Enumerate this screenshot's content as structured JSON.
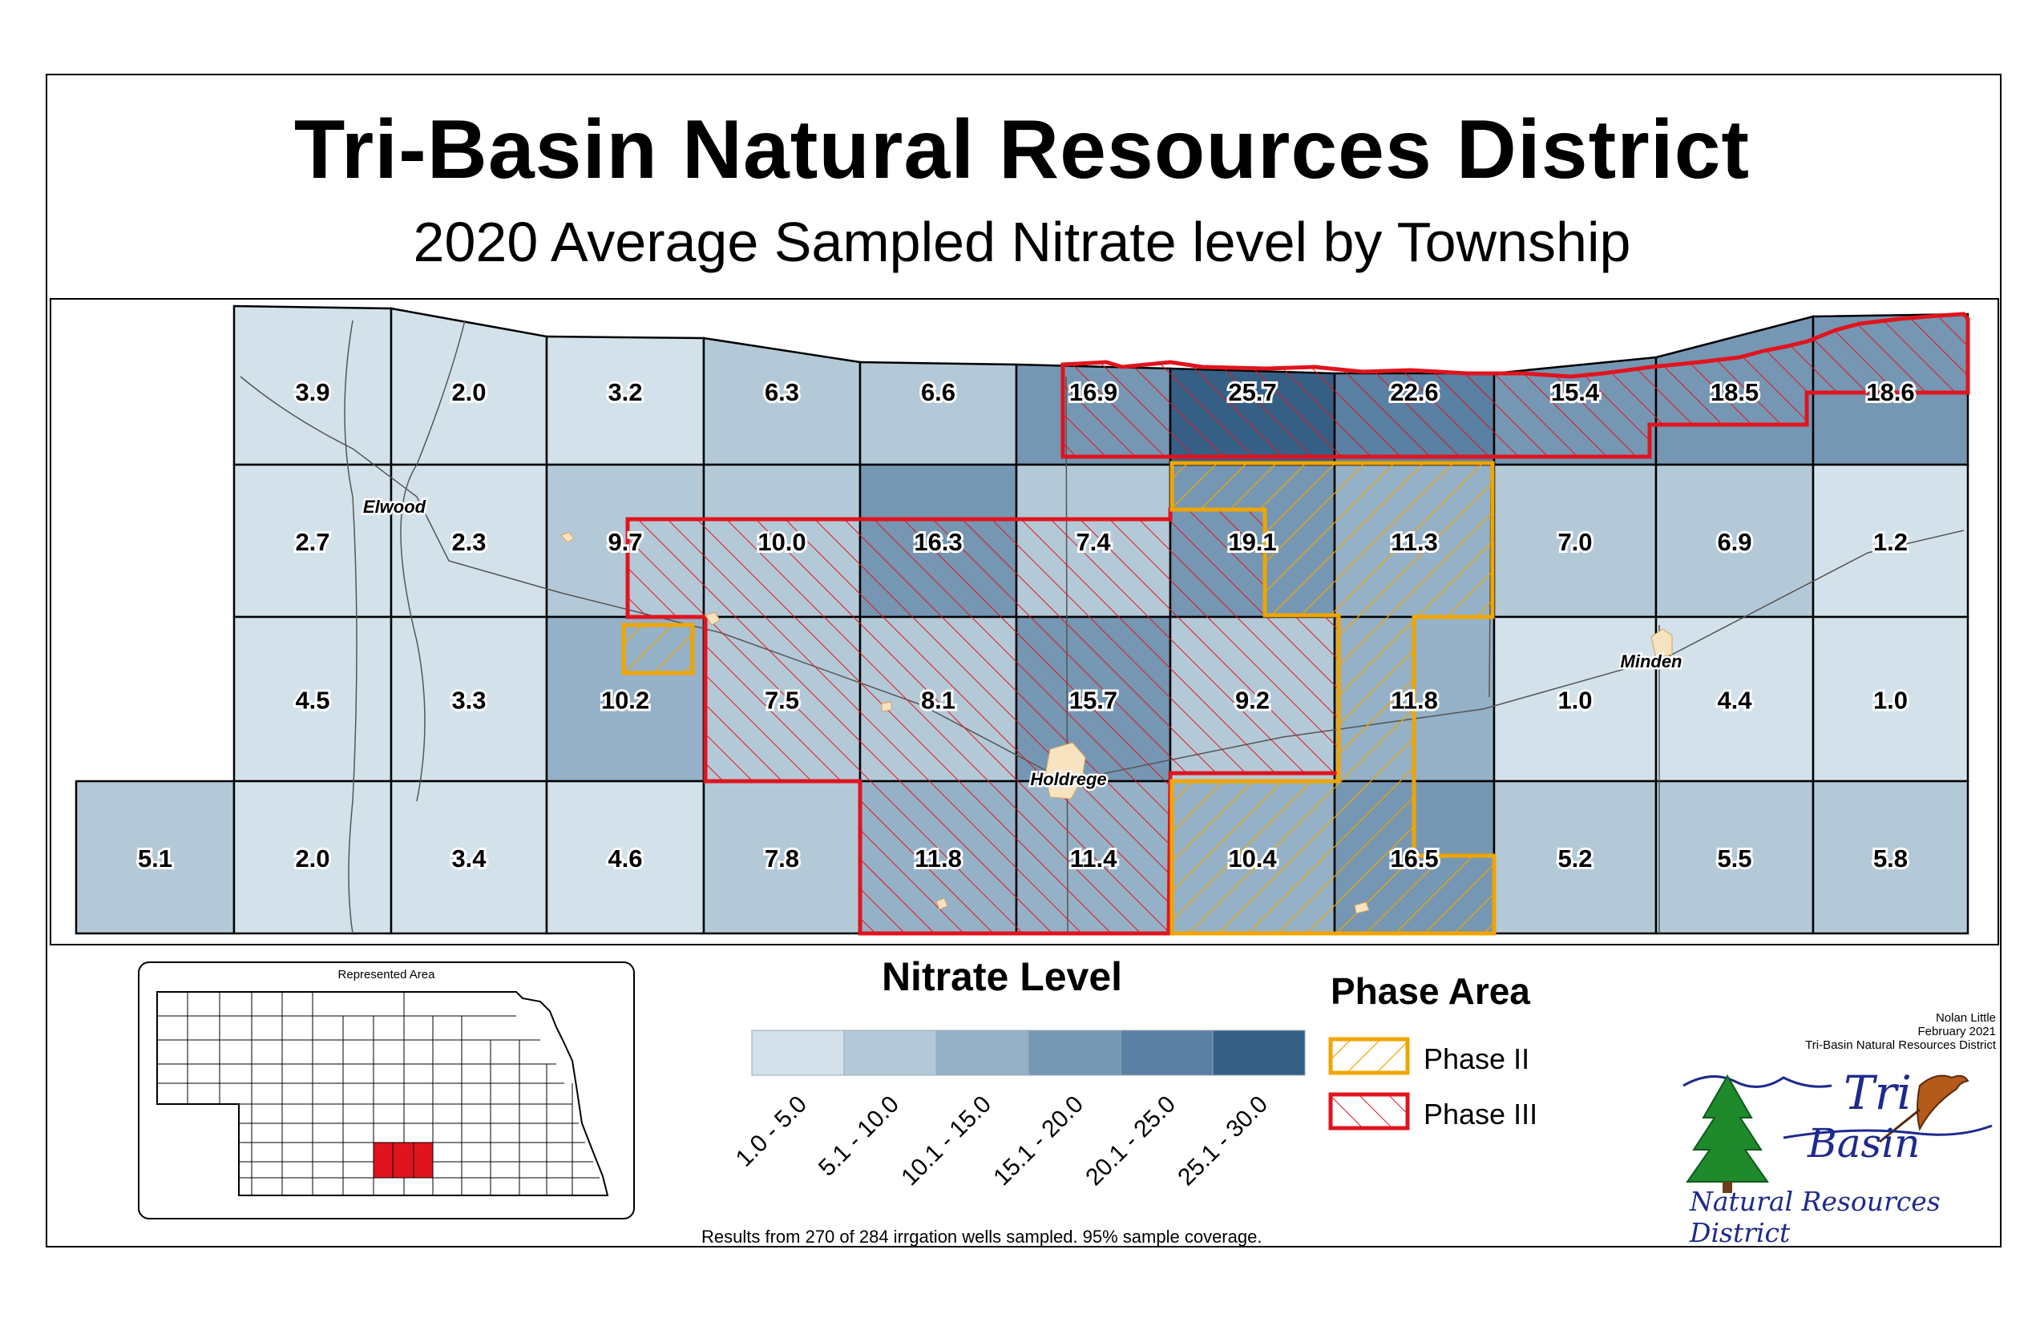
{
  "title": "Tri-Basin Natural Resources District",
  "subtitle": "2020 Average Sampled Nitrate level by Township",
  "towns": [
    "Elwood",
    "Holdrege",
    "Minden"
  ],
  "townships": [
    {
      "row": 0,
      "col": 1,
      "value": "3.9"
    },
    {
      "row": 0,
      "col": 2,
      "value": "2.0"
    },
    {
      "row": 0,
      "col": 3,
      "value": "3.2"
    },
    {
      "row": 0,
      "col": 4,
      "value": "6.3"
    },
    {
      "row": 0,
      "col": 5,
      "value": "6.6"
    },
    {
      "row": 0,
      "col": 6,
      "value": "16.9"
    },
    {
      "row": 0,
      "col": 7,
      "value": "25.7"
    },
    {
      "row": 0,
      "col": 8,
      "value": "22.6"
    },
    {
      "row": 0,
      "col": 9,
      "value": "15.4"
    },
    {
      "row": 0,
      "col": 10,
      "value": "18.5"
    },
    {
      "row": 0,
      "col": 11,
      "value": "18.6"
    },
    {
      "row": 1,
      "col": 1,
      "value": "2.7"
    },
    {
      "row": 1,
      "col": 2,
      "value": "2.3"
    },
    {
      "row": 1,
      "col": 3,
      "value": "9.7"
    },
    {
      "row": 1,
      "col": 4,
      "value": "10.0"
    },
    {
      "row": 1,
      "col": 5,
      "value": "16.3"
    },
    {
      "row": 1,
      "col": 6,
      "value": "7.4"
    },
    {
      "row": 1,
      "col": 7,
      "value": "19.1"
    },
    {
      "row": 1,
      "col": 8,
      "value": "11.3"
    },
    {
      "row": 1,
      "col": 9,
      "value": "7.0"
    },
    {
      "row": 1,
      "col": 10,
      "value": "6.9"
    },
    {
      "row": 1,
      "col": 11,
      "value": "1.2"
    },
    {
      "row": 2,
      "col": 1,
      "value": "4.5"
    },
    {
      "row": 2,
      "col": 2,
      "value": "3.3"
    },
    {
      "row": 2,
      "col": 3,
      "value": "10.2"
    },
    {
      "row": 2,
      "col": 4,
      "value": "7.5"
    },
    {
      "row": 2,
      "col": 5,
      "value": "8.1"
    },
    {
      "row": 2,
      "col": 6,
      "value": "15.7"
    },
    {
      "row": 2,
      "col": 7,
      "value": "9.2"
    },
    {
      "row": 2,
      "col": 8,
      "value": "11.8"
    },
    {
      "row": 2,
      "col": 9,
      "value": "1.0"
    },
    {
      "row": 2,
      "col": 10,
      "value": "4.4"
    },
    {
      "row": 2,
      "col": 11,
      "value": "1.0"
    },
    {
      "row": 3,
      "col": 0,
      "value": "5.1"
    },
    {
      "row": 3,
      "col": 1,
      "value": "2.0"
    },
    {
      "row": 3,
      "col": 2,
      "value": "3.4"
    },
    {
      "row": 3,
      "col": 3,
      "value": "4.6"
    },
    {
      "row": 3,
      "col": 4,
      "value": "7.8"
    },
    {
      "row": 3,
      "col": 5,
      "value": "11.8"
    },
    {
      "row": 3,
      "col": 6,
      "value": "11.4"
    },
    {
      "row": 3,
      "col": 7,
      "value": "10.4"
    },
    {
      "row": 3,
      "col": 8,
      "value": "16.5"
    },
    {
      "row": 3,
      "col": 9,
      "value": "5.2"
    },
    {
      "row": 3,
      "col": 10,
      "value": "5.5"
    },
    {
      "row": 3,
      "col": 11,
      "value": "5.8"
    }
  ],
  "legend": {
    "title": "Nitrate Level",
    "classes": [
      "1.0 - 5.0",
      "5.1 - 10.0",
      "10.1 - 15.0",
      "15.1 - 20.0",
      "20.1 - 25.0",
      "25.1 - 30.0"
    ],
    "colors": [
      "#d3e2ea",
      "#b4c9d8",
      "#95b1c7",
      "#7597b4",
      "#5a80a3",
      "#365f86"
    ]
  },
  "phase": {
    "title": "Phase Area",
    "items": [
      {
        "label": "Phase II",
        "color": "#f0a500"
      },
      {
        "label": "Phase III",
        "color": "#e0141e"
      }
    ]
  },
  "inset": {
    "title": "Represented Area"
  },
  "credit": {
    "author": "Nolan Little",
    "date": "February 2021",
    "org": "Tri-Basin Natural Resources District"
  },
  "logo": {
    "line1": "Tri",
    "line2": "Basin",
    "line3": "Natural Resources District"
  },
  "footnote": "Results from 270 of 284 irrgation wells sampled.  95% sample coverage."
}
